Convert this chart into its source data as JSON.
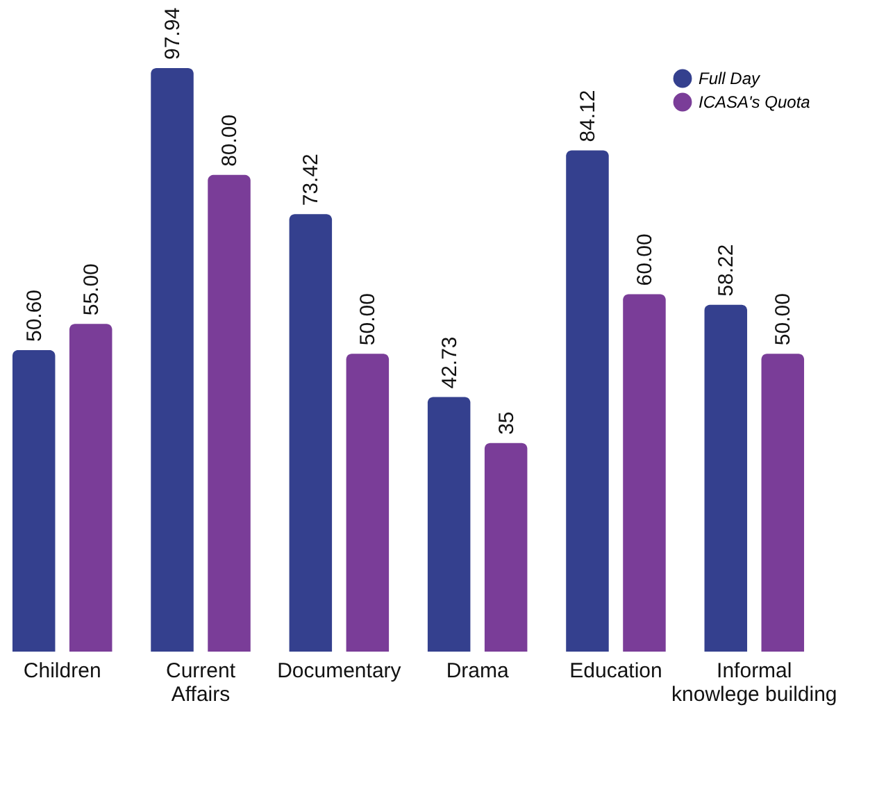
{
  "chart_data": {
    "type": "bar",
    "tick_labels": "x",
    "categories": [
      "Children",
      "Current Affairs",
      "Documentary",
      "Drama",
      "Education",
      "Informal knowlege building"
    ],
    "series": [
      {
        "name": "Full Day",
        "color": "#34408e",
        "values": [
          50.6,
          97.94,
          73.42,
          42.73,
          84.12,
          58.22
        ],
        "value_labels": [
          "50.60",
          "97.94",
          "73.42",
          "42.73",
          "84.12",
          "58.22"
        ]
      },
      {
        "name": "ICASA's Quota",
        "color": "#7a3d98",
        "values": [
          55.0,
          80.0,
          50.0,
          35,
          60.0,
          50.0
        ],
        "value_labels": [
          "55.00",
          "80.00",
          "50.00",
          "35",
          "60.00",
          "50.00"
        ]
      }
    ],
    "legend": "top right"
  }
}
